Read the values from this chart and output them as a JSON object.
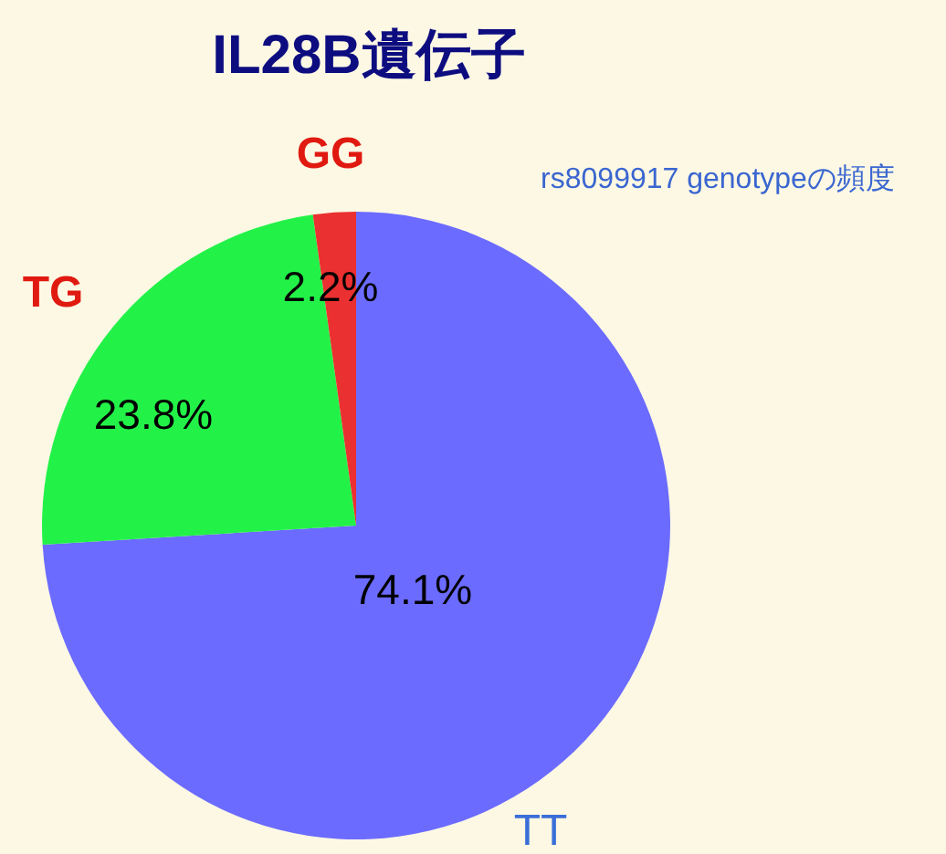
{
  "chart_data": {
    "type": "pie",
    "title": "IL28B遺伝子",
    "subtitle": "rs8099917 genotypeの頻度",
    "categories": [
      "TT",
      "TG",
      "GG"
    ],
    "values": [
      74.1,
      23.8,
      2.2
    ],
    "colors": [
      "#6b6bff",
      "#22f248",
      "#ea3030"
    ],
    "value_labels": [
      "74.1%",
      "23.8%",
      "2.2%"
    ]
  }
}
